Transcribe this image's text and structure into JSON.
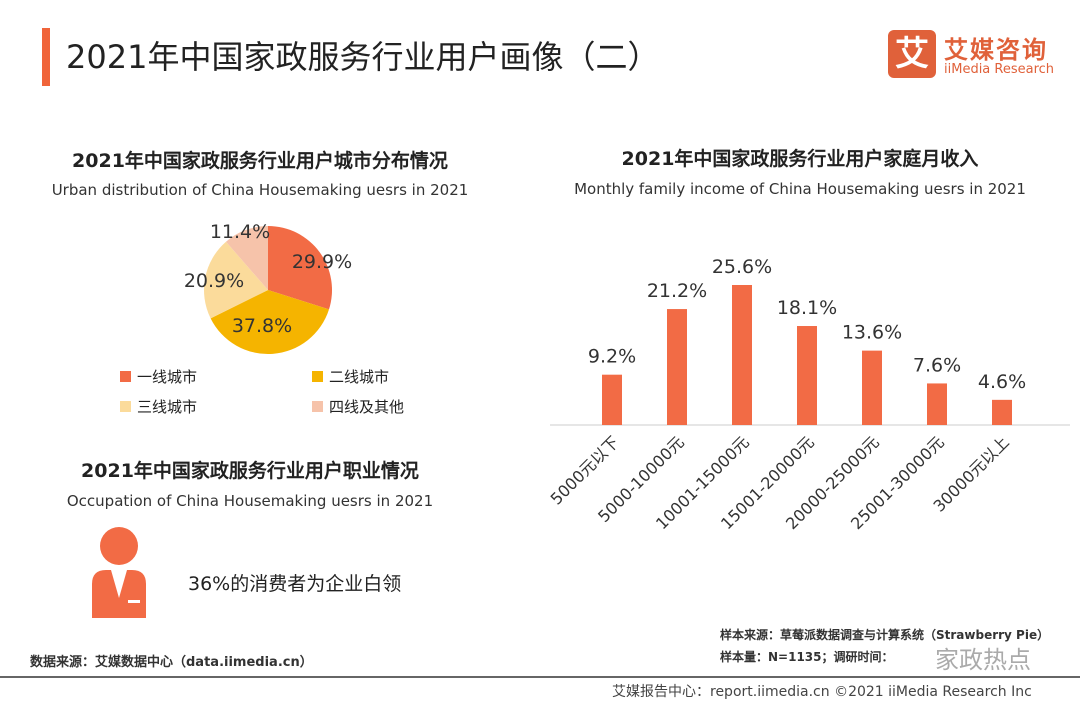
{
  "page_title": "2021年中国家政服务行业用户画像（二）",
  "logo": {
    "mark": "艾",
    "cn": "艾媒咨询",
    "en": "iiMedia Research"
  },
  "colors": {
    "accent": "#F0643A",
    "bar": "#F26B45",
    "tier1": "#F26B45",
    "tier2": "#F5B400",
    "tier3": "#FBDB9B",
    "tier4": "#F6C3AA"
  },
  "chart_data": [
    {
      "type": "pie",
      "title": "2021年中国家政服务行业用户城市分布情况",
      "subtitle": "Urban distribution of China Housemaking uesrs in 2021",
      "slices": [
        {
          "label": "一线城市",
          "value": 29.9,
          "display": "29.9%"
        },
        {
          "label": "二线城市",
          "value": 37.8,
          "display": "37.8%"
        },
        {
          "label": "三线城市",
          "value": 20.9,
          "display": "20.9%"
        },
        {
          "label": "四线及其他",
          "value": 11.4,
          "display": "11.4%"
        }
      ],
      "legend": "bottom"
    },
    {
      "type": "bar",
      "title": "2021年中国家政服务行业用户家庭月收入",
      "subtitle": "Monthly family income of China Housemaking uesrs in 2021",
      "categories": [
        "5000元以下",
        "5000-10000元",
        "10001-15000元",
        "15001-20000元",
        "20000-25000元",
        "25001-30000元",
        "30000元以上"
      ],
      "values": [
        9.2,
        21.2,
        25.6,
        18.1,
        13.6,
        7.6,
        4.6
      ],
      "labels": [
        "9.2%",
        "21.2%",
        "25.6%",
        "18.1%",
        "13.6%",
        "7.6%",
        "4.6%"
      ],
      "ylim": [
        0,
        28
      ],
      "grid": false
    }
  ],
  "occupation": {
    "title": "2021年中国家政服务行业用户职业情况",
    "subtitle": "Occupation of China Housemaking uesrs in 2021",
    "text": "36%的消费者为企业白领",
    "icon": "businessperson-icon"
  },
  "source_left": "数据来源：艾媒数据中心（data.iimedia.cn）",
  "source_right_1": "样本来源：草莓派数据调查与计算系统（Strawberry Pie）",
  "source_right_2": "样本量：N=1135；调研时间：",
  "watermark": "家政热点",
  "footer": "艾媒报告中心：report.iimedia.cn ©2021 iiMedia Research Inc"
}
